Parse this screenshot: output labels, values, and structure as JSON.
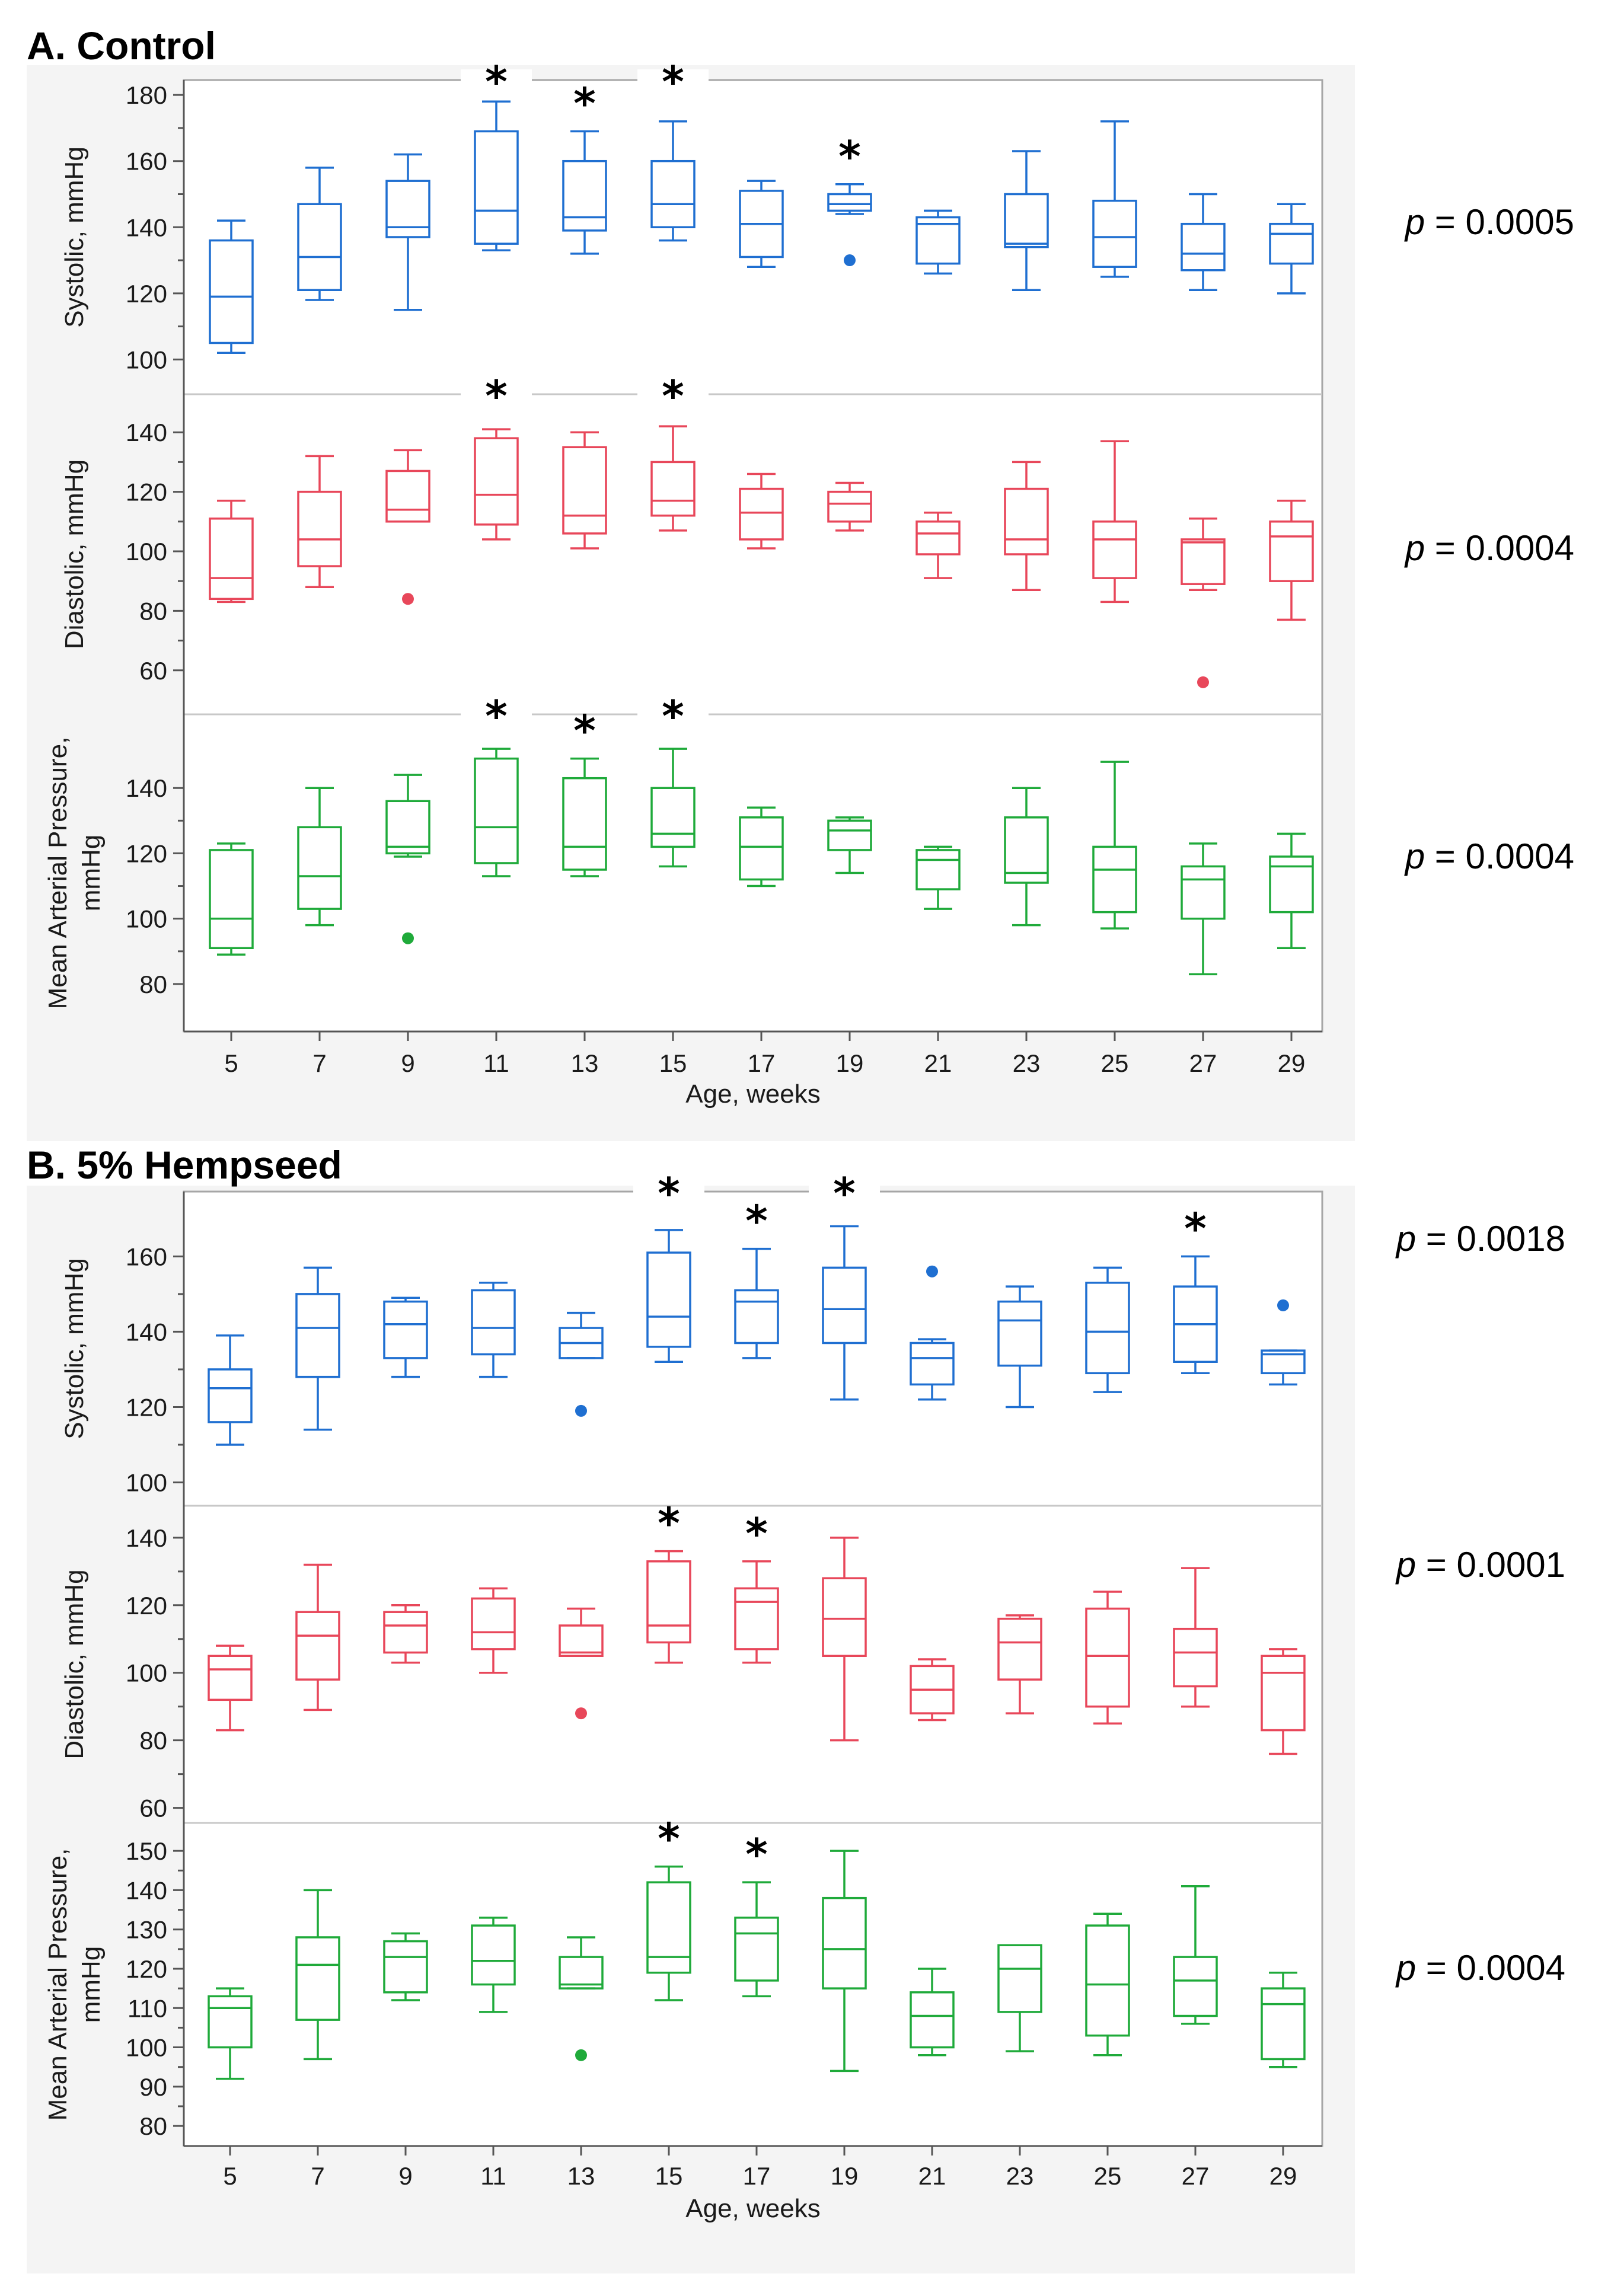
{
  "colors": {
    "systolic": "#1f6fd1",
    "diastolic": "#e8475a",
    "map": "#1faa3a"
  },
  "chart_data": [
    {
      "type": "box",
      "panel_title": "A. Control",
      "xlabel": "Age, weeks",
      "categories": [
        "5",
        "7",
        "9",
        "11",
        "13",
        "15",
        "17",
        "19",
        "21",
        "23",
        "25",
        "27",
        "29"
      ],
      "subplots": [
        {
          "ylabel_lines": [
            "Systolic, mmHg"
          ],
          "color_key": "systolic",
          "ylim": [
            92,
            182
          ],
          "yticks": [
            100,
            120,
            140,
            160,
            180
          ],
          "p_value": "0.0005",
          "boxes": [
            {
              "min": 102,
              "q1": 105,
              "median": 119,
              "q3": 136,
              "max": 142
            },
            {
              "min": 118,
              "q1": 121,
              "median": 131,
              "q3": 147,
              "max": 158
            },
            {
              "min": 115,
              "q1": 137,
              "median": 140,
              "q3": 154,
              "max": 162
            },
            {
              "min": 133,
              "q1": 135,
              "median": 145,
              "q3": 169,
              "max": 178
            },
            {
              "min": 132,
              "q1": 139,
              "median": 143,
              "q3": 160,
              "max": 169
            },
            {
              "min": 136,
              "q1": 140,
              "median": 147,
              "q3": 160,
              "max": 172
            },
            {
              "min": 128,
              "q1": 131,
              "median": 141,
              "q3": 151,
              "max": 154
            },
            {
              "min": 144,
              "q1": 145,
              "median": 147,
              "q3": 150,
              "max": 153
            },
            {
              "min": 126,
              "q1": 129,
              "median": 141,
              "q3": 143,
              "max": 145
            },
            {
              "min": 121,
              "q1": 134,
              "median": 135,
              "q3": 150,
              "max": 163
            },
            {
              "min": 125,
              "q1": 128,
              "median": 137,
              "q3": 148,
              "max": 172
            },
            {
              "min": 121,
              "q1": 127,
              "median": 132,
              "q3": 141,
              "max": 150
            },
            {
              "min": 120,
              "q1": 129,
              "median": 138,
              "q3": 141,
              "max": 147
            }
          ],
          "outliers": [
            {
              "category": "19",
              "value": 130
            }
          ],
          "significant": [
            "11",
            "13",
            "15",
            "19"
          ]
        },
        {
          "ylabel_lines": [
            "Diastolic, mmHg"
          ],
          "color_key": "diastolic",
          "ylim": [
            48,
            150
          ],
          "yticks": [
            60,
            80,
            100,
            120,
            140
          ],
          "p_value": "0.0004",
          "boxes": [
            {
              "min": 83,
              "q1": 84,
              "median": 91,
              "q3": 111,
              "max": 117
            },
            {
              "min": 88,
              "q1": 95,
              "median": 104,
              "q3": 120,
              "max": 132
            },
            {
              "min": 110,
              "q1": 110,
              "median": 114,
              "q3": 127,
              "max": 134
            },
            {
              "min": 104,
              "q1": 109,
              "median": 119,
              "q3": 138,
              "max": 141
            },
            {
              "min": 101,
              "q1": 106,
              "median": 112,
              "q3": 135,
              "max": 140
            },
            {
              "min": 107,
              "q1": 112,
              "median": 117,
              "q3": 130,
              "max": 142
            },
            {
              "min": 101,
              "q1": 104,
              "median": 113,
              "q3": 121,
              "max": 126
            },
            {
              "min": 107,
              "q1": 110,
              "median": 116,
              "q3": 120,
              "max": 123
            },
            {
              "min": 91,
              "q1": 99,
              "median": 106,
              "q3": 110,
              "max": 113
            },
            {
              "min": 87,
              "q1": 99,
              "median": 104,
              "q3": 121,
              "max": 130
            },
            {
              "min": 83,
              "q1": 91,
              "median": 104,
              "q3": 110,
              "max": 137
            },
            {
              "min": 87,
              "q1": 89,
              "median": 103,
              "q3": 104,
              "max": 111
            },
            {
              "min": 77,
              "q1": 90,
              "median": 105,
              "q3": 110,
              "max": 117
            }
          ],
          "outliers": [
            {
              "category": "9",
              "value": 84
            },
            {
              "category": "27",
              "value": 56
            }
          ],
          "significant": [
            "11",
            "15"
          ]
        },
        {
          "ylabel_lines": [
            "Mean Arterial Pressure,",
            "mmHg"
          ],
          "color_key": "map",
          "ylim": [
            68,
            160
          ],
          "yticks": [
            80,
            100,
            120,
            140
          ],
          "p_value": "0.0004",
          "boxes": [
            {
              "min": 89,
              "q1": 91,
              "median": 100,
              "q3": 121,
              "max": 123
            },
            {
              "min": 98,
              "q1": 103,
              "median": 113,
              "q3": 128,
              "max": 140
            },
            {
              "min": 119,
              "q1": 120,
              "median": 122,
              "q3": 136,
              "max": 144
            },
            {
              "min": 113,
              "q1": 117,
              "median": 128,
              "q3": 149,
              "max": 152
            },
            {
              "min": 113,
              "q1": 115,
              "median": 122,
              "q3": 143,
              "max": 149
            },
            {
              "min": 116,
              "q1": 122,
              "median": 126,
              "q3": 140,
              "max": 152
            },
            {
              "min": 110,
              "q1": 112,
              "median": 122,
              "q3": 131,
              "max": 134
            },
            {
              "min": 114,
              "q1": 121,
              "median": 127,
              "q3": 130,
              "max": 131
            },
            {
              "min": 103,
              "q1": 109,
              "median": 118,
              "q3": 121,
              "max": 122
            },
            {
              "min": 98,
              "q1": 111,
              "median": 114,
              "q3": 131,
              "max": 140
            },
            {
              "min": 97,
              "q1": 102,
              "median": 115,
              "q3": 122,
              "max": 148
            },
            {
              "min": 83,
              "q1": 100,
              "median": 112,
              "q3": 116,
              "max": 123
            },
            {
              "min": 91,
              "q1": 102,
              "median": 116,
              "q3": 119,
              "max": 126
            }
          ],
          "outliers": [
            {
              "category": "9",
              "value": 94
            }
          ],
          "significant": [
            "11",
            "13",
            "15"
          ]
        }
      ]
    },
    {
      "type": "box",
      "panel_title": "B. 5% Hempseed",
      "xlabel": "Age, weeks",
      "categories": [
        "5",
        "7",
        "9",
        "11",
        "13",
        "15",
        "17",
        "19",
        "21",
        "23",
        "25",
        "27",
        "29"
      ],
      "subplots": [
        {
          "ylabel_lines": [
            "Systolic, mmHg"
          ],
          "color_key": "systolic",
          "ylim": [
            96,
            175
          ],
          "yticks": [
            100,
            120,
            140,
            160
          ],
          "p_value": "0.0018",
          "boxes": [
            {
              "min": 110,
              "q1": 116,
              "median": 125,
              "q3": 130,
              "max": 139
            },
            {
              "min": 114,
              "q1": 128,
              "median": 141,
              "q3": 150,
              "max": 157
            },
            {
              "min": 128,
              "q1": 133,
              "median": 142,
              "q3": 148,
              "max": 149
            },
            {
              "min": 128,
              "q1": 134,
              "median": 141,
              "q3": 151,
              "max": 153
            },
            {
              "min": 133,
              "q1": 133,
              "median": 137,
              "q3": 141,
              "max": 145
            },
            {
              "min": 132,
              "q1": 136,
              "median": 144,
              "q3": 161,
              "max": 167
            },
            {
              "min": 133,
              "q1": 137,
              "median": 148,
              "q3": 151,
              "max": 162
            },
            {
              "min": 122,
              "q1": 137,
              "median": 146,
              "q3": 157,
              "max": 168
            },
            {
              "min": 122,
              "q1": 126,
              "median": 133,
              "q3": 137,
              "max": 138
            },
            {
              "min": 120,
              "q1": 131,
              "median": 143,
              "q3": 148,
              "max": 152
            },
            {
              "min": 124,
              "q1": 129,
              "median": 140,
              "q3": 153,
              "max": 157
            },
            {
              "min": 129,
              "q1": 132,
              "median": 142,
              "q3": 152,
              "max": 160
            },
            {
              "min": 126,
              "q1": 129,
              "median": 134,
              "q3": 135,
              "max": 135
            }
          ],
          "outliers": [
            {
              "category": "13",
              "value": 119
            },
            {
              "category": "21",
              "value": 156
            },
            {
              "category": "29",
              "value": 147
            }
          ],
          "significant": [
            "15",
            "17",
            "19",
            "27"
          ]
        },
        {
          "ylabel_lines": [
            "Diastolic, mmHg"
          ],
          "color_key": "diastolic",
          "ylim": [
            58,
            147
          ],
          "yticks": [
            60,
            80,
            100,
            120,
            140
          ],
          "p_value": "0.0001",
          "boxes": [
            {
              "min": 83,
              "q1": 92,
              "median": 101,
              "q3": 105,
              "max": 108
            },
            {
              "min": 89,
              "q1": 98,
              "median": 111,
              "q3": 118,
              "max": 132
            },
            {
              "min": 103,
              "q1": 106,
              "median": 114,
              "q3": 118,
              "max": 120
            },
            {
              "min": 100,
              "q1": 107,
              "median": 112,
              "q3": 122,
              "max": 125
            },
            {
              "min": 105,
              "q1": 105,
              "median": 106,
              "q3": 114,
              "max": 119
            },
            {
              "min": 103,
              "q1": 109,
              "median": 114,
              "q3": 133,
              "max": 136
            },
            {
              "min": 103,
              "q1": 107,
              "median": 121,
              "q3": 125,
              "max": 133
            },
            {
              "min": 80,
              "q1": 105,
              "median": 116,
              "q3": 128,
              "max": 140
            },
            {
              "min": 86,
              "q1": 88,
              "median": 95,
              "q3": 102,
              "max": 104
            },
            {
              "min": 88,
              "q1": 98,
              "median": 109,
              "q3": 116,
              "max": 117
            },
            {
              "min": 85,
              "q1": 90,
              "median": 105,
              "q3": 119,
              "max": 124
            },
            {
              "min": 90,
              "q1": 96,
              "median": 106,
              "q3": 113,
              "max": 131
            },
            {
              "min": 76,
              "q1": 83,
              "median": 100,
              "q3": 105,
              "max": 107
            }
          ],
          "outliers": [
            {
              "category": "13",
              "value": 88
            }
          ],
          "significant": [
            "15",
            "17"
          ]
        },
        {
          "ylabel_lines": [
            "Mean Arterial Pressure,",
            "mmHg"
          ],
          "color_key": "map",
          "ylim": [
            77,
            155
          ],
          "yticks": [
            80,
            90,
            100,
            110,
            120,
            130,
            140,
            150
          ],
          "p_value": "0.0004",
          "boxes": [
            {
              "min": 92,
              "q1": 100,
              "median": 110,
              "q3": 113,
              "max": 115
            },
            {
              "min": 97,
              "q1": 107,
              "median": 121,
              "q3": 128,
              "max": 140
            },
            {
              "min": 112,
              "q1": 114,
              "median": 123,
              "q3": 127,
              "max": 129
            },
            {
              "min": 109,
              "q1": 116,
              "median": 122,
              "q3": 131,
              "max": 133
            },
            {
              "min": 115,
              "q1": 115,
              "median": 116,
              "q3": 123,
              "max": 128
            },
            {
              "min": 112,
              "q1": 119,
              "median": 123,
              "q3": 142,
              "max": 146
            },
            {
              "min": 113,
              "q1": 117,
              "median": 129,
              "q3": 133,
              "max": 142
            },
            {
              "min": 94,
              "q1": 115,
              "median": 125,
              "q3": 138,
              "max": 150
            },
            {
              "min": 98,
              "q1": 100,
              "median": 108,
              "q3": 114,
              "max": 120
            },
            {
              "min": 99,
              "q1": 109,
              "median": 120,
              "q3": 126,
              "max": 126
            },
            {
              "min": 98,
              "q1": 103,
              "median": 116,
              "q3": 131,
              "max": 134
            },
            {
              "min": 106,
              "q1": 108,
              "median": 117,
              "q3": 123,
              "max": 141
            },
            {
              "min": 95,
              "q1": 97,
              "median": 111,
              "q3": 115,
              "max": 119
            }
          ],
          "outliers": [
            {
              "category": "13",
              "value": 98
            }
          ],
          "significant": [
            "15",
            "17"
          ]
        }
      ]
    }
  ]
}
